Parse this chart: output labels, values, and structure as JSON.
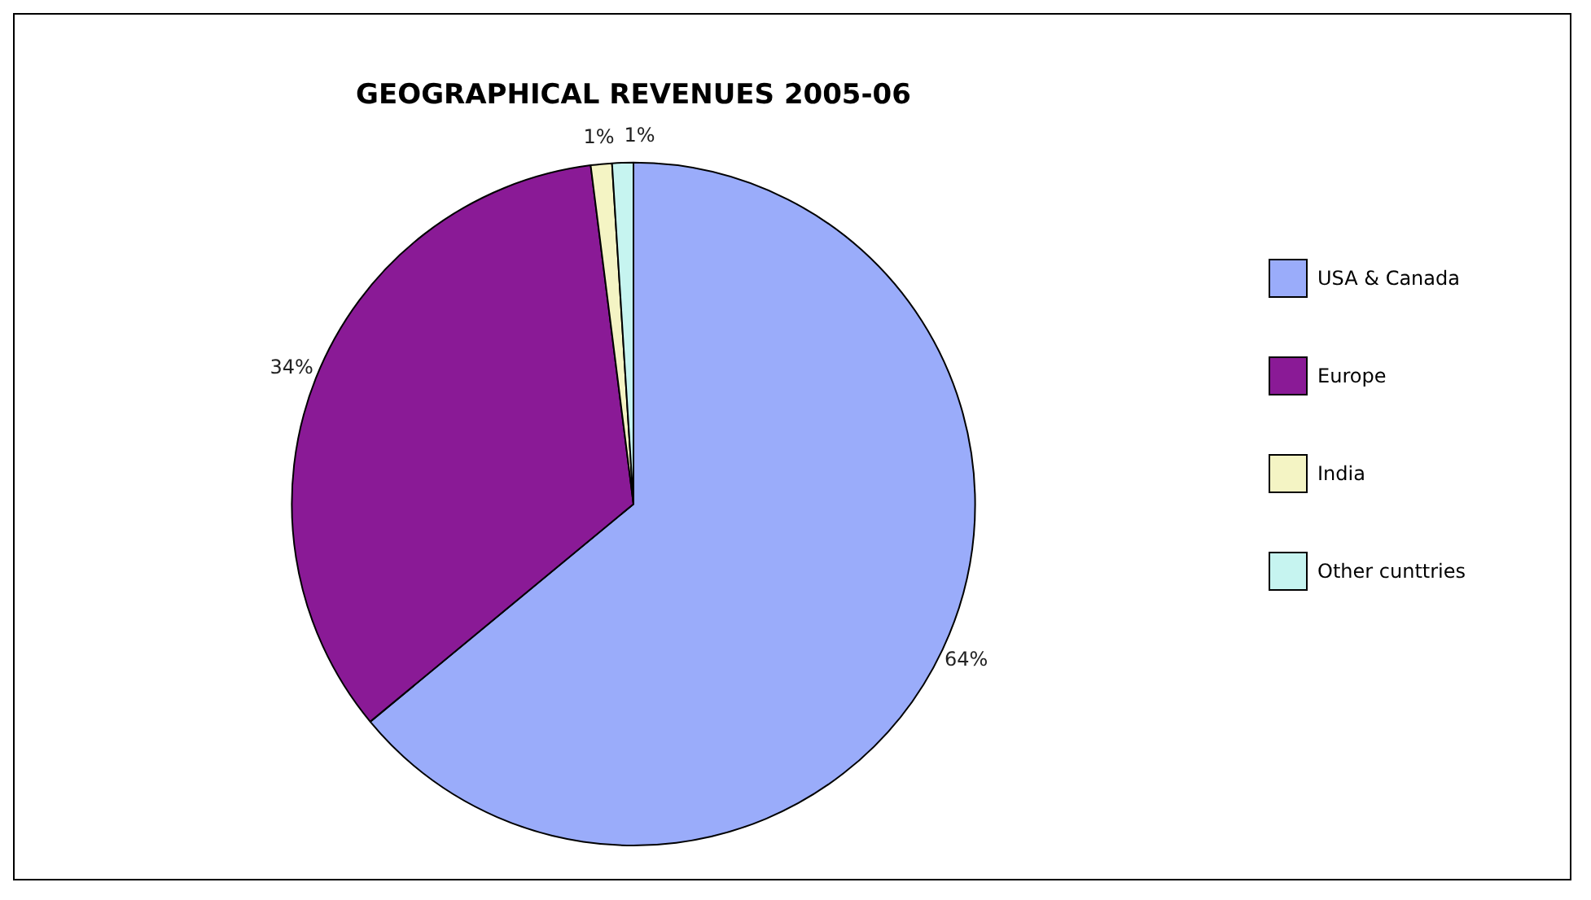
{
  "chart_data": {
    "type": "pie",
    "title": "GEOGRAPHICAL REVENUES 2005-06",
    "categories": [
      "USA & Canada",
      "Europe",
      "India",
      "Other cunttries"
    ],
    "values": [
      64,
      34,
      1,
      1
    ],
    "colors": [
      "#9aacfa",
      "#8a1a96",
      "#f4f4c4",
      "#c6f4f0"
    ],
    "value_labels": [
      "64%",
      "34%",
      "1%",
      "1%"
    ],
    "legend": "right"
  }
}
